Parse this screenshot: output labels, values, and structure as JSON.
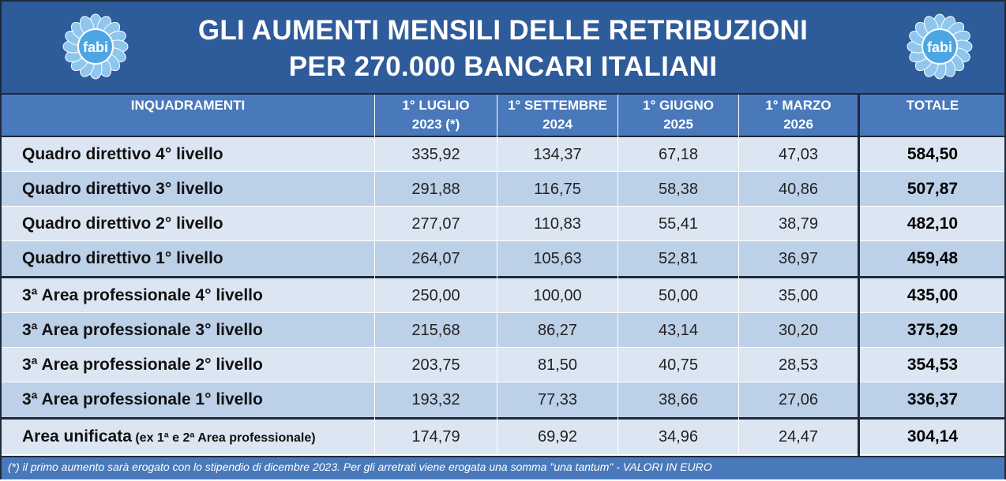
{
  "title": {
    "line1": "GLI AUMENTI MENSILI DELLE RETRIBUZIONI",
    "line2": "PER 270.000 BANCARI ITALIANI"
  },
  "logo": {
    "text": "fabi",
    "icon": "daisy-logo-icon",
    "petal_color": "#8ec6ee",
    "center_color": "#4da6e4"
  },
  "columns": [
    "INQUADRAMENTI",
    "1° LUGLIO\n2023 (*)",
    "1° SETTEMBRE\n2024",
    "1° GIUGNO\n2025",
    "1° MARZO\n2026",
    "TOTALE"
  ],
  "rows": [
    {
      "label": "Quadro direttivo 4° livello",
      "values": [
        "335,92",
        "134,37",
        "67,18",
        "47,03"
      ],
      "total": "584,50"
    },
    {
      "label": "Quadro direttivo 3° livello",
      "values": [
        "291,88",
        "116,75",
        "58,38",
        "40,86"
      ],
      "total": "507,87"
    },
    {
      "label": "Quadro direttivo 2° livello",
      "values": [
        "277,07",
        "110,83",
        "55,41",
        "38,79"
      ],
      "total": "482,10"
    },
    {
      "label": "Quadro direttivo 1° livello",
      "values": [
        "264,07",
        "105,63",
        "52,81",
        "36,97"
      ],
      "total": "459,48"
    },
    {
      "label": "3ª Area professionale 4° livello",
      "values": [
        "250,00",
        "100,00",
        "50,00",
        "35,00"
      ],
      "total": "435,00"
    },
    {
      "label": "3ª Area professionale 3° livello",
      "values": [
        "215,68",
        "86,27",
        "43,14",
        "30,20"
      ],
      "total": "375,29"
    },
    {
      "label": "3ª Area professionale 2° livello",
      "values": [
        "203,75",
        "81,50",
        "40,75",
        "28,53"
      ],
      "total": "354,53"
    },
    {
      "label": "3ª Area professionale 1° livello",
      "values": [
        "193,32",
        "77,33",
        "38,66",
        "27,06"
      ],
      "total": "336,37"
    },
    {
      "label": "Area unificata",
      "label_sub": " (ex 1ª e 2ª Area professionale)",
      "values": [
        "174,79",
        "69,92",
        "34,96",
        "24,47"
      ],
      "total": "304,14"
    }
  ],
  "footnote": "(*) il primo aumento sarà erogato con lo stipendio di dicembre 2023. Per gli arretrati viene erogata una somma \"una tantum\" - VALORI IN EURO",
  "colors": {
    "header_bg": "#2e5b9a",
    "colhead_bg": "#4a79bb",
    "row_light": "#dce6f2",
    "row_dark": "#bcd0e8"
  }
}
